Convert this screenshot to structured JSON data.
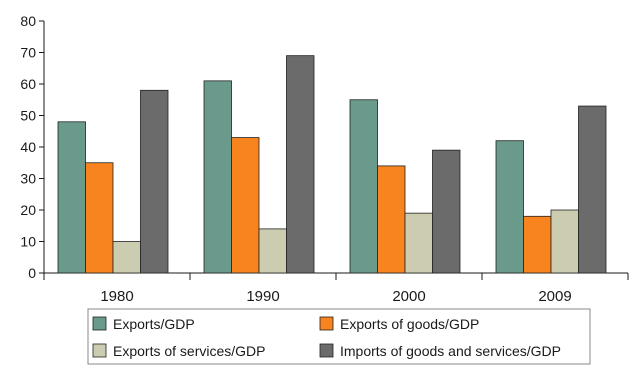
{
  "chart_data": {
    "type": "bar",
    "categories": [
      "1980",
      "1990",
      "2000",
      "2009"
    ],
    "series": [
      {
        "name": "Exports/GDP",
        "color": "#6a9a8b",
        "values": [
          48,
          61,
          55,
          42
        ]
      },
      {
        "name": "Exports of goods/GDP",
        "color": "#f7841f",
        "values": [
          35,
          43,
          34,
          18
        ]
      },
      {
        "name": "Exports of services/GDP",
        "color": "#cccdb0",
        "values": [
          10,
          14,
          19,
          20
        ]
      },
      {
        "name": "Imports of goods and services/GDP",
        "color": "#6b6b6b",
        "values": [
          58,
          69,
          39,
          53
        ]
      }
    ],
    "ylim": [
      0,
      80
    ],
    "yticks": [
      0,
      10,
      20,
      30,
      40,
      50,
      60,
      70,
      80
    ],
    "grid": false,
    "legend": "bottom"
  }
}
